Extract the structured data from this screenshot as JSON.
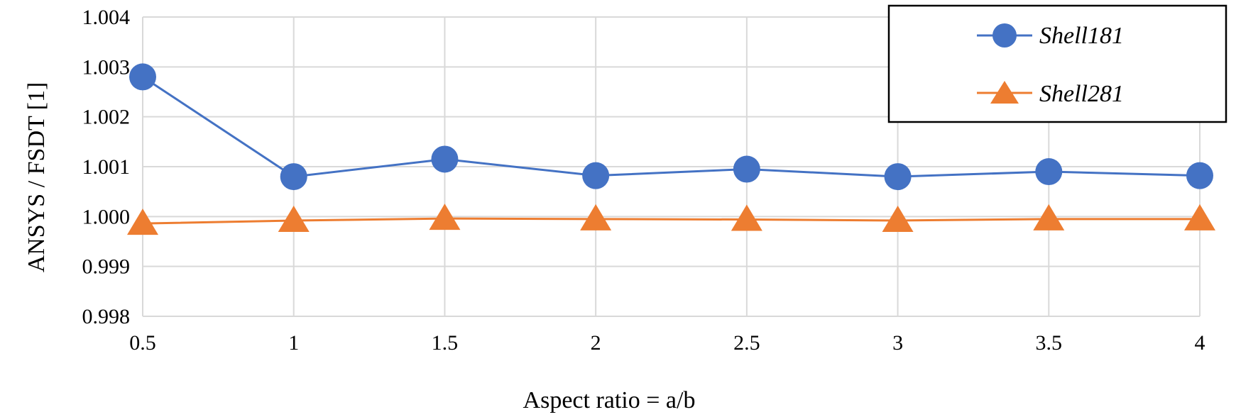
{
  "chart_data": {
    "type": "line",
    "title": "",
    "xlabel": "Aspect ratio = a/b",
    "ylabel": "ANSYS / FSDT [1]",
    "x": [
      0.5,
      1,
      1.5,
      2,
      2.5,
      3,
      3.5,
      4
    ],
    "xticks": [
      "0.5",
      "1",
      "1.5",
      "2",
      "2.5",
      "3",
      "3.5",
      "4"
    ],
    "ylim": [
      0.998,
      1.004
    ],
    "yticks": [
      "0.998",
      "0.999",
      "1.000",
      "1.001",
      "1.002",
      "1.003",
      "1.004"
    ],
    "grid": true,
    "legend": "top-right",
    "series": [
      {
        "name": "Shell181",
        "color": "#4472c4",
        "marker": "circle",
        "values": [
          1.0028,
          1.0008,
          1.00115,
          1.00082,
          1.00095,
          1.0008,
          1.0009,
          1.00082
        ]
      },
      {
        "name": "Shell281",
        "color": "#ed7d31",
        "marker": "triangle",
        "values": [
          0.99986,
          0.99992,
          0.99996,
          0.99995,
          0.99994,
          0.99992,
          0.99995,
          0.99995
        ]
      }
    ]
  }
}
